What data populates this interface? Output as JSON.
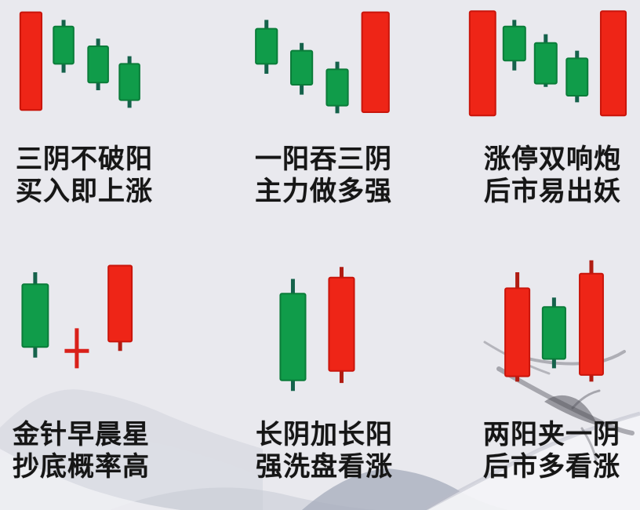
{
  "page": {
    "background": "#e9e9ee",
    "text_color": "#161616"
  },
  "colors": {
    "bull_body": "#ee2517",
    "bull_border": "#c9150b",
    "bull_wick": "#b01c12",
    "bear_body": "#109c4a",
    "bear_border": "#0a7c39",
    "bear_wick": "#15624b",
    "doji": "#d9201a",
    "ink": "#55555e"
  },
  "scale": {
    "price_min": 0,
    "price_max": 100,
    "axes_visible": false,
    "grid": false
  },
  "chart_data": [
    {
      "type": "candlestick",
      "caption": [
        "三阴不破阳",
        "买入即上涨"
      ],
      "candles": [
        {
          "kind": "candle",
          "dir": "up",
          "x": 0.145,
          "w": 0.1,
          "open": 7,
          "close": 96,
          "high": 96,
          "low": 7
        },
        {
          "kind": "candle",
          "dir": "down",
          "x": 0.298,
          "w": 0.094,
          "open": 83,
          "close": 49,
          "high": 89,
          "low": 41
        },
        {
          "kind": "candle",
          "dir": "down",
          "x": 0.46,
          "w": 0.094,
          "open": 65,
          "close": 32,
          "high": 72,
          "low": 25
        },
        {
          "kind": "candle",
          "dir": "down",
          "x": 0.607,
          "w": 0.094,
          "open": 49,
          "close": 16,
          "high": 56,
          "low": 9
        }
      ]
    },
    {
      "type": "candlestick",
      "caption": [
        "一阳吞三阴",
        "主力做多强"
      ],
      "candles": [
        {
          "kind": "candle",
          "dir": "down",
          "x": 0.249,
          "w": 0.1,
          "open": 81,
          "close": 49,
          "high": 89,
          "low": 40
        },
        {
          "kind": "candle",
          "dir": "down",
          "x": 0.414,
          "w": 0.1,
          "open": 61,
          "close": 30,
          "high": 68,
          "low": 21
        },
        {
          "kind": "candle",
          "dir": "down",
          "x": 0.581,
          "w": 0.1,
          "open": 44,
          "close": 11,
          "high": 51,
          "low": 4
        },
        {
          "kind": "candle",
          "dir": "up",
          "x": 0.76,
          "w": 0.126,
          "open": 5,
          "close": 96,
          "high": 96,
          "low": 5
        }
      ]
    },
    {
      "type": "candlestick",
      "caption": [
        "涨停双响炮",
        "后市易出妖"
      ],
      "candles": [
        {
          "kind": "candle",
          "dir": "up",
          "x": 0.262,
          "w": 0.121,
          "open": 2,
          "close": 97,
          "high": 97,
          "low": 2
        },
        {
          "kind": "candle",
          "dir": "down",
          "x": 0.411,
          "w": 0.103,
          "open": 83,
          "close": 52,
          "high": 89,
          "low": 43
        },
        {
          "kind": "candle",
          "dir": "down",
          "x": 0.558,
          "w": 0.103,
          "open": 68,
          "close": 31,
          "high": 76,
          "low": 28
        },
        {
          "kind": "candle",
          "dir": "down",
          "x": 0.705,
          "w": 0.099,
          "open": 54,
          "close": 20,
          "high": 61,
          "low": 14
        },
        {
          "kind": "candle",
          "dir": "up",
          "x": 0.875,
          "w": 0.118,
          "open": 2,
          "close": 97,
          "high": 97,
          "low": 2
        }
      ]
    },
    {
      "type": "candlestick",
      "caption": [
        "金针早晨星",
        "抄底概率高"
      ],
      "candles": [
        {
          "kind": "candle",
          "dir": "down",
          "x": 0.165,
          "w": 0.121,
          "open": 81,
          "close": 34,
          "high": 90,
          "low": 26
        },
        {
          "kind": "doji",
          "x": 0.36,
          "arm": 0.057,
          "open": 31,
          "close": 31,
          "high": 48,
          "low": 18
        },
        {
          "kind": "candle",
          "dir": "up",
          "x": 0.563,
          "w": 0.11,
          "open": 38,
          "close": 95,
          "high": 95,
          "low": 31
        }
      ]
    },
    {
      "type": "candlestick",
      "caption": [
        "长阴加长阳",
        "强洗盘看涨"
      ],
      "candles": [
        {
          "kind": "candle",
          "dir": "down",
          "x": 0.373,
          "w": 0.118,
          "open": 74,
          "close": 9,
          "high": 85,
          "low": 1
        },
        {
          "kind": "candle",
          "dir": "up",
          "x": 0.601,
          "w": 0.118,
          "open": 16,
          "close": 86,
          "high": 94,
          "low": 7
        }
      ]
    },
    {
      "type": "candlestick",
      "caption": [
        "两阳夹一阴",
        "后市多看涨"
      ],
      "candles": [
        {
          "kind": "candle",
          "dir": "up",
          "x": 0.425,
          "w": 0.114,
          "open": 12,
          "close": 78,
          "high": 90,
          "low": 8
        },
        {
          "kind": "candle",
          "dir": "down",
          "x": 0.597,
          "w": 0.107,
          "open": 64,
          "close": 25,
          "high": 71,
          "low": 18
        },
        {
          "kind": "candle",
          "dir": "up",
          "x": 0.772,
          "w": 0.11,
          "open": 13,
          "close": 89,
          "high": 99,
          "low": 8
        }
      ]
    }
  ]
}
